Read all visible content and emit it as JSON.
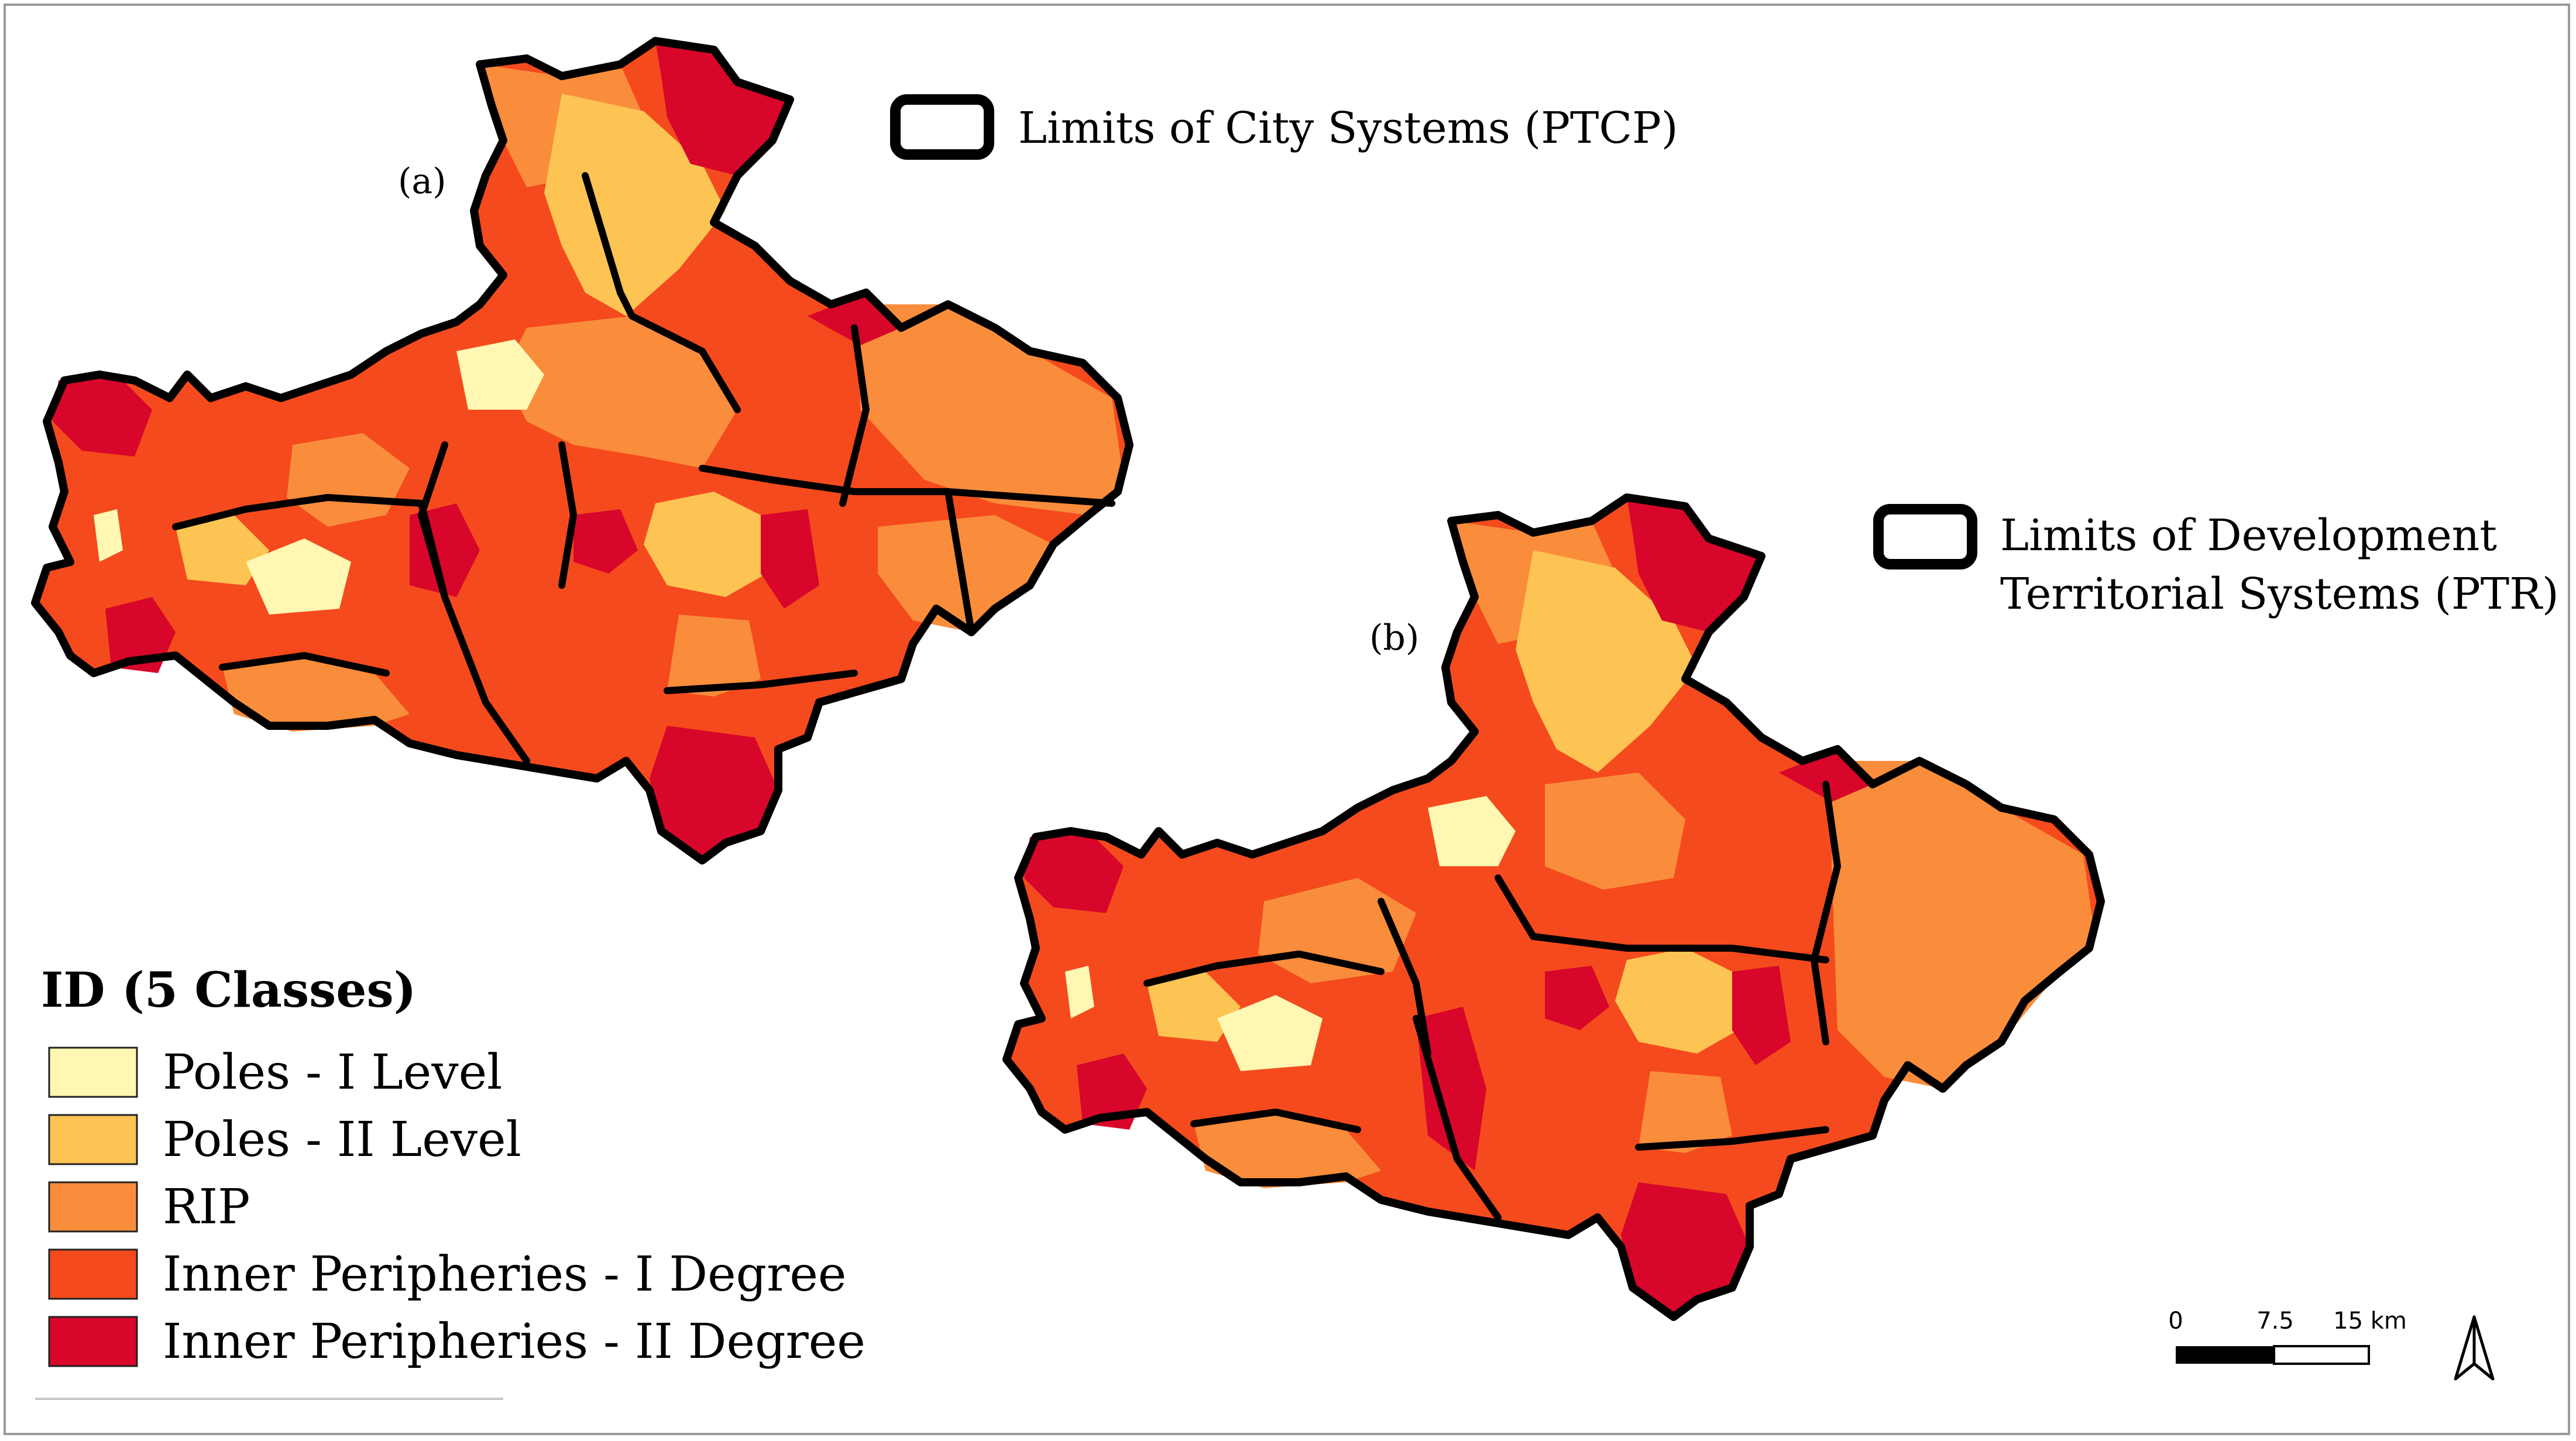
{
  "map": {
    "panel_a_label": "(a)",
    "panel_b_label": "(b)",
    "limit_a_label": "Limits of City Systems (PTCP)",
    "limit_b_line1": "Limits of Development",
    "limit_b_line2": "Territorial Systems (PTR)"
  },
  "legend": {
    "title": "ID (5 Classes)",
    "items": [
      {
        "label": "Poles - I Level",
        "color": "#fff7b2"
      },
      {
        "label": "Poles - II Level",
        "color": "#fdc453"
      },
      {
        "label": "RIP",
        "color": "#f98d3b"
      },
      {
        "label": "Inner Peripheries - I Degree",
        "color": "#f54a1d"
      },
      {
        "label": "Inner Peripheries - II Degree",
        "color": "#d7062a"
      }
    ]
  },
  "scale_bar": {
    "tick_0": "0",
    "tick_1": "7.5",
    "tick_2": "15 km"
  },
  "north_arrow": "north-arrow-icon"
}
